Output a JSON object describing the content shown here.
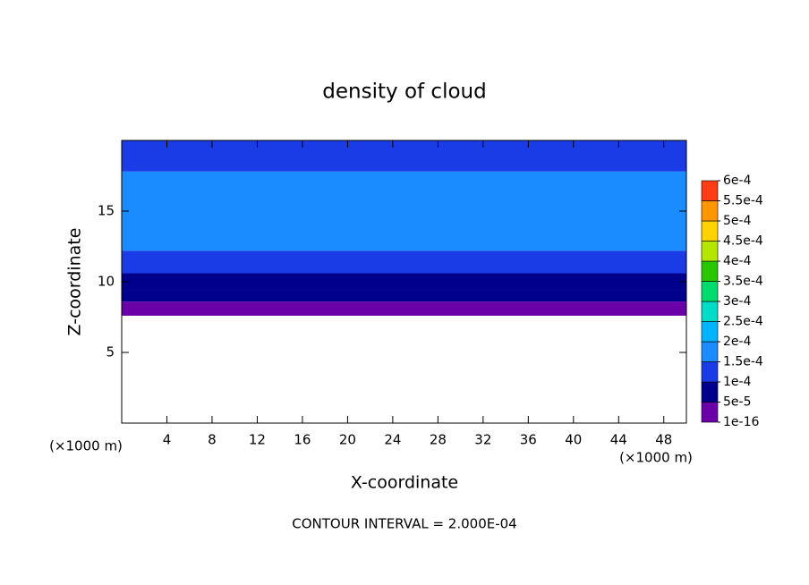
{
  "chart_data": {
    "type": "contour",
    "title": "density of cloud",
    "x_label": "X-coordinate",
    "y_label": "Z-coordinate",
    "x_unit": "(×1000 m)",
    "y_unit": "(×1000 m)",
    "footer": "CONTOUR INTERVAL = 2.000E-04",
    "xlim": [
      0,
      50
    ],
    "ylim": [
      0,
      20
    ],
    "xticks": [
      4,
      8,
      12,
      16,
      20,
      24,
      28,
      32,
      36,
      40,
      44,
      48
    ],
    "yticks": [
      5,
      10,
      15
    ],
    "field": {
      "z": [
        7.6,
        8.6,
        9.4,
        10.6,
        12.2,
        17.8,
        20
      ],
      "values": [
        3e-05,
        7e-05,
        9e-05,
        0.00013,
        0.00016,
        0.00013
      ]
    },
    "colorbar": {
      "levels": [
        {
          "value": 1e-16,
          "label": "1e-16"
        },
        {
          "value": 5e-05,
          "label": "5e-5"
        },
        {
          "value": 0.0001,
          "label": "1e-4"
        },
        {
          "value": 0.00015,
          "label": "1.5e-4"
        },
        {
          "value": 0.0002,
          "label": "2e-4"
        },
        {
          "value": 0.00025,
          "label": "2.5e-4"
        },
        {
          "value": 0.0003,
          "label": "3e-4"
        },
        {
          "value": 0.00035,
          "label": "3.5e-4"
        },
        {
          "value": 0.0004,
          "label": "4e-4"
        },
        {
          "value": 0.00045,
          "label": "4.5e-4"
        },
        {
          "value": 0.0005,
          "label": "5e-4"
        },
        {
          "value": 0.00055,
          "label": "5.5e-4"
        },
        {
          "value": 0.0006,
          "label": "6e-4"
        }
      ],
      "colors": [
        "#6a00a8",
        "#00008c",
        "#1a3ce6",
        "#1a8cff",
        "#00b4ff",
        "#00dcc8",
        "#00dc6e",
        "#28c800",
        "#b4e600",
        "#ffd200",
        "#ff9600",
        "#ff3c14"
      ]
    }
  }
}
